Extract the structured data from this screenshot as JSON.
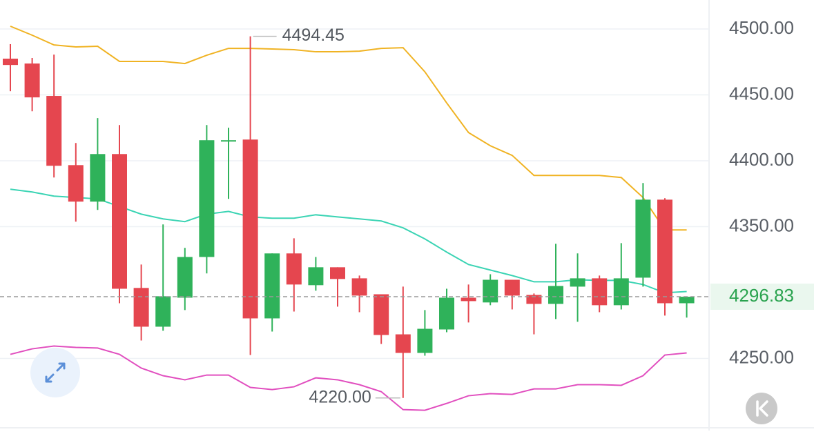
{
  "chart_data": {
    "type": "candlestick",
    "up_color": "#2fb25a",
    "down_color": "#e5464f",
    "ylim": [
      4200,
      4522
    ],
    "yticks": [
      {
        "value": 4250,
        "label": "4250.00"
      },
      {
        "value": 4350,
        "label": "4350.00"
      },
      {
        "value": 4400,
        "label": "4400.00"
      },
      {
        "value": 4450,
        "label": "4450.00"
      },
      {
        "value": 4500,
        "label": "4500.00"
      }
    ],
    "grid": true,
    "current_price": {
      "value": 4296.83,
      "label": "4296.83"
    },
    "annotations": [
      {
        "value": 4494.45,
        "label": "4494.45",
        "index": 11
      },
      {
        "value": 4220,
        "label": "4220.00",
        "index": 18
      }
    ],
    "candles": [
      {
        "open": 4477.5,
        "high": 4488.5,
        "low": 4452.8,
        "close": 4472.7
      },
      {
        "open": 4473.8,
        "high": 4478.0,
        "low": 4437.6,
        "close": 4448.1
      },
      {
        "open": 4449.2,
        "high": 4480.6,
        "low": 4387.3,
        "close": 4396.2
      },
      {
        "open": 4396.7,
        "high": 4413.5,
        "low": 4353.8,
        "close": 4369.0
      },
      {
        "open": 4369.0,
        "high": 4432.4,
        "low": 4362.7,
        "close": 4405.1
      },
      {
        "open": 4405.1,
        "high": 4427.1,
        "low": 4291.9,
        "close": 4302.9
      },
      {
        "open": 4303.5,
        "high": 4321.3,
        "low": 4263.6,
        "close": 4274.1
      },
      {
        "open": 4274.1,
        "high": 4351.7,
        "low": 4271.0,
        "close": 4297.2
      },
      {
        "open": 4296.1,
        "high": 4333.9,
        "low": 4286.7,
        "close": 4327.0
      },
      {
        "open": 4327.0,
        "high": 4427.1,
        "low": 4314.5,
        "close": 4415.6
      },
      {
        "open": 4414.6,
        "high": 4425.1,
        "low": 4371.1,
        "close": 4415.6
      },
      {
        "open": 4416.1,
        "high": 4494.45,
        "low": 4252.6,
        "close": 4280.4
      },
      {
        "open": 4280.4,
        "high": 4329.7,
        "low": 4270.4,
        "close": 4329.7
      },
      {
        "open": 4329.7,
        "high": 4341.2,
        "low": 4285.6,
        "close": 4306.1
      },
      {
        "open": 4305.6,
        "high": 4327.0,
        "low": 4301.4,
        "close": 4319.2
      },
      {
        "open": 4319.2,
        "high": 4319.2,
        "low": 4289.3,
        "close": 4310.3
      },
      {
        "open": 4310.8,
        "high": 4312.9,
        "low": 4285.1,
        "close": 4297.7
      },
      {
        "open": 4298.7,
        "high": 4298.7,
        "low": 4261.0,
        "close": 4267.8
      },
      {
        "open": 4268.3,
        "high": 4304.5,
        "low": 4220,
        "close": 4254.2
      },
      {
        "open": 4254.2,
        "high": 4286.7,
        "low": 4252.1,
        "close": 4272.5
      },
      {
        "open": 4272.0,
        "high": 4302.9,
        "low": 4269.9,
        "close": 4296.1
      },
      {
        "open": 4296.1,
        "high": 4306.1,
        "low": 4277.3,
        "close": 4293.5
      },
      {
        "open": 4292.5,
        "high": 4313.9,
        "low": 4290.4,
        "close": 4309.7
      },
      {
        "open": 4309.7,
        "high": 4309.7,
        "low": 4287.2,
        "close": 4297.7
      },
      {
        "open": 4298.2,
        "high": 4299.3,
        "low": 4268.3,
        "close": 4291.4
      },
      {
        "open": 4291.4,
        "high": 4337.0,
        "low": 4279.9,
        "close": 4305.0
      },
      {
        "open": 4304.5,
        "high": 4329.7,
        "low": 4277.8,
        "close": 4310.8
      },
      {
        "open": 4310.8,
        "high": 4312.9,
        "low": 4285.1,
        "close": 4290.4
      },
      {
        "open": 4290.4,
        "high": 4337.5,
        "low": 4287.2,
        "close": 4310.8
      },
      {
        "open": 4311.3,
        "high": 4383.1,
        "low": 4304.5,
        "close": 4370.5
      },
      {
        "open": 4370.5,
        "high": 4371.6,
        "low": 4282.5,
        "close": 4291.9
      },
      {
        "open": 4291.9,
        "high": 4296.83,
        "low": 4281.0,
        "close": 4296.83
      }
    ],
    "bands": [
      {
        "color": "#f0b323",
        "values": [
          4502.1,
          4495.3,
          4487.9,
          4486.4,
          4486.9,
          4475.4,
          4475.4,
          4475.4,
          4473.8,
          4480.1,
          4485.3,
          4485.3,
          4484.8,
          4484.3,
          4482.7,
          4482.7,
          4483.2,
          4485.3,
          4485.8,
          4467.5,
          4443.9,
          4421.4,
          4411.4,
          4404.1,
          4388.9,
          4388.9,
          4388.9,
          4388.9,
          4387.3,
          4372.1,
          4347.5,
          4347.5
        ]
      },
      {
        "color": "#3bd4b4",
        "values": [
          4378.4,
          4376.3,
          4373.2,
          4372.1,
          4371.1,
          4365.3,
          4359.5,
          4355.9,
          4353.8,
          4359.5,
          4361.6,
          4357.4,
          4356.4,
          4356.4,
          4359.0,
          4357.4,
          4355.9,
          4354.3,
          4349.1,
          4340.7,
          4330.7,
          4321.3,
          4317.1,
          4312.9,
          4308.2,
          4308.2,
          4309.7,
          4309.2,
          4309.2,
          4306.1,
          4299.8,
          4300.8
        ]
      },
      {
        "color": "#e14fbf",
        "values": [
          4253.1,
          4257.3,
          4259.4,
          4258.4,
          4257.9,
          4253.1,
          4242.7,
          4236.9,
          4233.8,
          4237.4,
          4237.4,
          4228.0,
          4226.4,
          4228.5,
          4235.3,
          4233.8,
          4230.1,
          4224.8,
          4211.2,
          4210.7,
          4215.9,
          4221.7,
          4223.3,
          4222.7,
          4226.9,
          4226.9,
          4230.1,
          4230.1,
          4229.6,
          4236.9,
          4252.6,
          4254.2
        ]
      }
    ]
  }
}
